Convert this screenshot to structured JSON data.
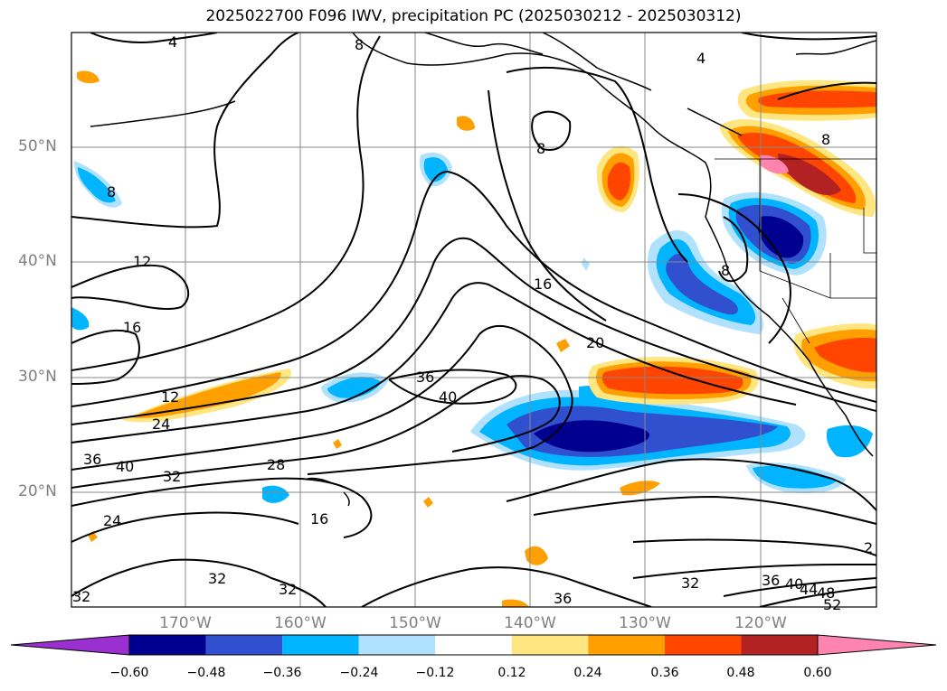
{
  "title": "2025022700 F096 IWV, precipitation PC (2025030212 - 2025030312)",
  "lat_labels": [
    "50°N",
    "40°N",
    "30°N",
    "20°N"
  ],
  "lon_labels": [
    "170°W",
    "160°W",
    "150°W",
    "140°W",
    "130°W",
    "120°W"
  ],
  "colorbar": {
    "ticks": [
      "−0.60",
      "−0.48",
      "−0.36",
      "−0.24",
      "−0.12",
      "0.12",
      "0.24",
      "0.36",
      "0.48",
      "0.60"
    ],
    "colors": [
      "#9b30d0",
      "#000090",
      "#3050d0",
      "#00b4ff",
      "#b0e2ff",
      "#ffffff",
      "#ffe680",
      "#ffa000",
      "#ff4500",
      "#b22222",
      "#ff85b0"
    ]
  },
  "contour_labels": [
    "4",
    "8",
    "8",
    "8",
    "8",
    "8",
    "12",
    "12",
    "16",
    "16",
    "20",
    "24",
    "24",
    "28",
    "32",
    "32",
    "32",
    "32",
    "32",
    "36",
    "36",
    "36",
    "36",
    "40",
    "40",
    "40",
    "44",
    "48",
    "52",
    "2",
    "4",
    "16"
  ]
}
